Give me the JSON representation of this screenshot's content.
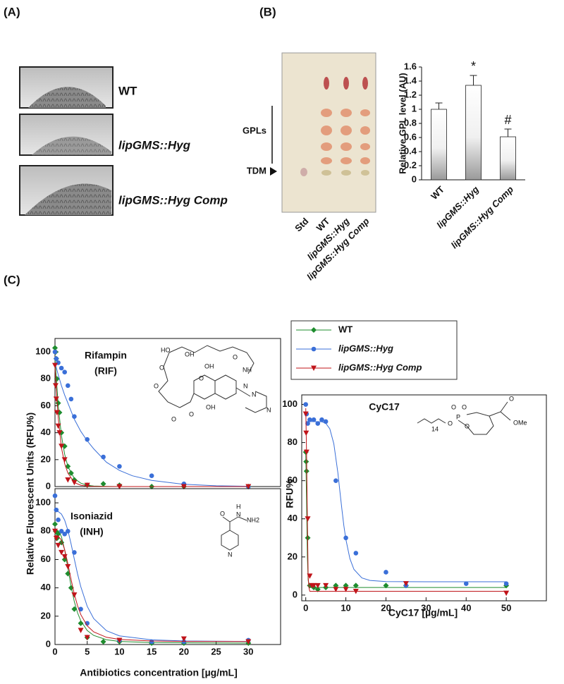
{
  "panels": {
    "a": "(A)",
    "b": "(B)",
    "c": "(C)",
    "colonies": [
      "WT",
      "lipGMS::Hyg",
      "lipGMS::Hyg Comp"
    ],
    "tlc": {
      "gpls": "GPLs",
      "tdm": "TDM",
      "lanes": [
        "Std",
        "WT",
        "lipGMS::Hyg",
        "lipGMS::Hyg Comp"
      ]
    },
    "ylabel": "Relative Fluorescent Units (RFU%)",
    "xlabel": "Antibiotics concentration [µg/mL]"
  },
  "structures": {
    "rif": [
      "HO",
      "O",
      "O",
      "OH",
      "OH",
      "NH",
      "O",
      "O",
      "OH",
      "N",
      "N",
      "N",
      "O",
      "O"
    ],
    "inh": [
      "O",
      "H",
      "N",
      "NH2",
      "N"
    ],
    "cyc": [
      "O",
      "O",
      "P",
      "O",
      "O",
      "14",
      "O",
      "OMe"
    ]
  },
  "chart_data": [
    {
      "type": "bar",
      "ylabel": "Relative GPL level (AU)",
      "categories": [
        "WT",
        "lipGMS::Hyg",
        "lipGMS::Hyg Comp"
      ],
      "values": [
        1.0,
        1.34,
        0.61
      ],
      "errors": [
        0.09,
        0.14,
        0.11
      ],
      "color": "#9a9a9a",
      "annotations": [
        {
          "text": "*",
          "x": "lipGMS::Hyg"
        },
        {
          "text": "#",
          "x": "lipGMS::Hyg Comp"
        }
      ],
      "ylim": [
        0,
        1.6
      ],
      "yticks": [
        0,
        0.2,
        0.4,
        0.6,
        0.8,
        1,
        1.2,
        1.4,
        1.6
      ]
    },
    {
      "type": "scatter",
      "title": "Rifampin",
      "subtitle": "(RIF)",
      "xlim": [
        0,
        35
      ],
      "ylim": [
        0,
        110
      ],
      "yticks": [
        0,
        20,
        40,
        60,
        80,
        100
      ],
      "series": [
        {
          "name": "WT",
          "color": "#1e8c2e",
          "marker": "diamond",
          "x": [
            0,
            0.1,
            0.2,
            0.3,
            0.5,
            0.7,
            1,
            1.5,
            2,
            2.5,
            3,
            5,
            7.5,
            10,
            15,
            20,
            30
          ],
          "values": [
            103,
            100,
            95,
            80,
            62,
            55,
            40,
            30,
            15,
            10,
            5,
            1,
            2,
            1,
            0,
            0,
            0
          ],
          "fit": {
            "x": [
              0,
              0.5,
              1,
              1.5,
              2,
              3,
              4,
              5,
              6,
              8,
              10,
              12,
              15,
              20,
              25,
              30
            ],
            "values": [
              95,
              60,
              38,
              24,
              15,
              6,
              2.5,
              1,
              0.4,
              0.1,
              0,
              0,
              0,
              0,
              0,
              0
            ]
          }
        },
        {
          "name": "lipGMS::Hyg",
          "color": "#3a6fd8",
          "marker": "circle",
          "x": [
            0,
            0.2,
            0.5,
            1,
            1.5,
            2,
            2.5,
            3,
            5,
            7.5,
            10,
            15,
            20,
            30
          ],
          "values": [
            100,
            95,
            92,
            88,
            85,
            75,
            65,
            52,
            35,
            22,
            15,
            8,
            2,
            0
          ],
          "fit": {
            "x": [
              0,
              0.5,
              1,
              1.5,
              2,
              3,
              4,
              5,
              6,
              8,
              10,
              12,
              15,
              20,
              25,
              30
            ],
            "values": [
              92,
              83,
              75,
              68,
              62,
              50,
              41,
              34,
              28,
              18,
              12,
              8,
              4.6,
              1.7,
              0.6,
              0.2
            ]
          }
        },
        {
          "name": "lipGMS::Hyg Comp",
          "color": "#c0141a",
          "marker": "triangle",
          "x": [
            0,
            0.1,
            0.2,
            0.3,
            0.5,
            0.7,
            1,
            1.5,
            2,
            3,
            5,
            10,
            20,
            30
          ],
          "values": [
            90,
            75,
            65,
            55,
            45,
            40,
            30,
            20,
            5,
            3,
            1,
            0,
            0,
            0
          ],
          "fit": {
            "x": [
              0,
              0.5,
              1,
              1.5,
              2,
              3,
              4,
              5,
              6,
              8,
              10,
              12,
              15,
              20,
              25,
              30
            ],
            "values": [
              88,
              51,
              29,
              17,
              10,
              3,
              1,
              0.3,
              0.1,
              0,
              0,
              0,
              0,
              0,
              0,
              0
            ]
          }
        }
      ]
    },
    {
      "type": "scatter",
      "title": "Isoniazid",
      "subtitle": "(INH)",
      "xlim": [
        0,
        35
      ],
      "ylim": [
        0,
        110
      ],
      "xticks": [
        0,
        5,
        10,
        15,
        20,
        25,
        30
      ],
      "yticks": [
        0,
        20,
        40,
        60,
        80,
        100
      ],
      "series": [
        {
          "color": "#1e8c2e",
          "marker": "diamond",
          "x": [
            0,
            0.1,
            0.3,
            0.5,
            1,
            1.5,
            2,
            2.5,
            3,
            4,
            5,
            7.5,
            10,
            15,
            20,
            30
          ],
          "values": [
            85,
            80,
            75,
            78,
            72,
            60,
            50,
            40,
            25,
            15,
            5,
            2,
            2,
            1,
            1,
            1
          ],
          "fit": {
            "x": [
              0,
              0.5,
              1,
              1.5,
              2,
              2.5,
              3,
              3.5,
              4,
              5,
              6,
              8,
              10,
              15,
              20,
              30
            ],
            "values": [
              81,
              80.4,
              76.2,
              66.8,
              53.9,
              41,
              30.3,
              22.4,
              16.7,
              9.9,
              6.4,
              3.4,
              2.2,
              1.4,
              1.2,
              1
            ]
          }
        },
        {
          "color": "#3a6fd8",
          "marker": "circle",
          "x": [
            0,
            0.2,
            0.5,
            1,
            1.5,
            2,
            3,
            4,
            5,
            10,
            15,
            20,
            30
          ],
          "values": [
            105,
            95,
            88,
            80,
            78,
            80,
            65,
            25,
            15,
            3,
            2,
            2,
            3
          ],
          "fit": {
            "x": [
              0,
              0.5,
              1,
              1.5,
              2,
              2.5,
              3,
              3.5,
              4,
              5,
              6,
              8,
              10,
              15,
              20,
              30
            ],
            "values": [
              94,
              93.8,
              92.1,
              87.8,
              80.6,
              70.9,
              60.3,
              49.9,
              40.8,
              27,
              18.3,
              9.7,
              6.1,
              3.3,
              2.5,
              2.2
            ]
          }
        },
        {
          "color": "#c0141a",
          "marker": "triangle",
          "x": [
            0,
            0.2,
            0.5,
            1,
            1.5,
            2,
            3,
            4,
            5,
            10,
            20,
            30
          ],
          "values": [
            80,
            75,
            70,
            65,
            62,
            55,
            35,
            10,
            5,
            3,
            4,
            2
          ],
          "fit": {
            "x": [
              0,
              0.5,
              1,
              1.5,
              2,
              2.5,
              3,
              3.5,
              4,
              5,
              6,
              8,
              10,
              15,
              20,
              30
            ],
            "values": [
              77,
              76.6,
              73.7,
              67,
              57,
              45.8,
              35.6,
              27.4,
              21.1,
              13.2,
              8.9,
              5.1,
              3.6,
              2.5,
              2.2,
              2.1
            ]
          }
        }
      ]
    },
    {
      "type": "scatter",
      "title": "CyC17",
      "xlabel": "CyC17 [µg/mL]",
      "ylabel": "RFU%",
      "xlim": [
        -1,
        60
      ],
      "ylim": [
        -3,
        105
      ],
      "xticks": [
        0,
        10,
        20,
        30,
        40,
        50
      ],
      "yticks": [
        0,
        20,
        40,
        60,
        80,
        100
      ],
      "series": [
        {
          "color": "#1e8c2e",
          "marker": "diamond",
          "x": [
            0,
            0.1,
            0.2,
            0.5,
            1,
            2,
            3,
            5,
            7.5,
            10,
            12.5,
            20,
            25,
            50
          ],
          "values": [
            75,
            70,
            65,
            30,
            5,
            4,
            3,
            4,
            5,
            5,
            5,
            5,
            5,
            5
          ],
          "fit": {
            "x": [
              0,
              0.2,
              0.4,
              0.6,
              0.8,
              1,
              2,
              5,
              10,
              20,
              50
            ],
            "values": [
              75,
              50,
              20,
              8,
              5,
              4,
              4,
              4,
              4,
              4,
              4
            ]
          }
        },
        {
          "color": "#3a6fd8",
          "marker": "circle",
          "x": [
            0,
            0.2,
            0.5,
            1,
            2,
            3,
            4,
            5,
            7.5,
            10,
            12.5,
            20,
            25,
            40,
            50
          ],
          "values": [
            100,
            95,
            90,
            92,
            92,
            90,
            92,
            91,
            60,
            30,
            22,
            12,
            5,
            6,
            6
          ],
          "fit": {
            "x": [
              0,
              2,
              4,
              5,
              6,
              7,
              8,
              8.5,
              9,
              9.5,
              10,
              11,
              12,
              14,
              16,
              20,
              30,
              50
            ],
            "values": [
              91,
              91,
              90.9,
              90.1,
              87.2,
              79.4,
              64.3,
              54.8,
              45.2,
              36.5,
              29.2,
              19.1,
              13.5,
              9,
              7.7,
              7.1,
              7,
              7
            ]
          }
        },
        {
          "color": "#c0141a",
          "marker": "triangle",
          "x": [
            0,
            0.1,
            0.2,
            0.5,
            1,
            1.5,
            2,
            3,
            5,
            7.5,
            10,
            12.5,
            25,
            50
          ],
          "values": [
            95,
            85,
            75,
            40,
            10,
            5,
            5,
            5,
            5,
            3,
            3,
            2,
            6,
            1
          ],
          "fit": {
            "x": [
              0,
              0.2,
              0.4,
              0.6,
              0.8,
              1,
              2,
              5,
              10,
              20,
              50
            ],
            "values": [
              98,
              75,
              40,
              10,
              4,
              2,
              2,
              2,
              2,
              2,
              2
            ]
          }
        }
      ]
    }
  ]
}
